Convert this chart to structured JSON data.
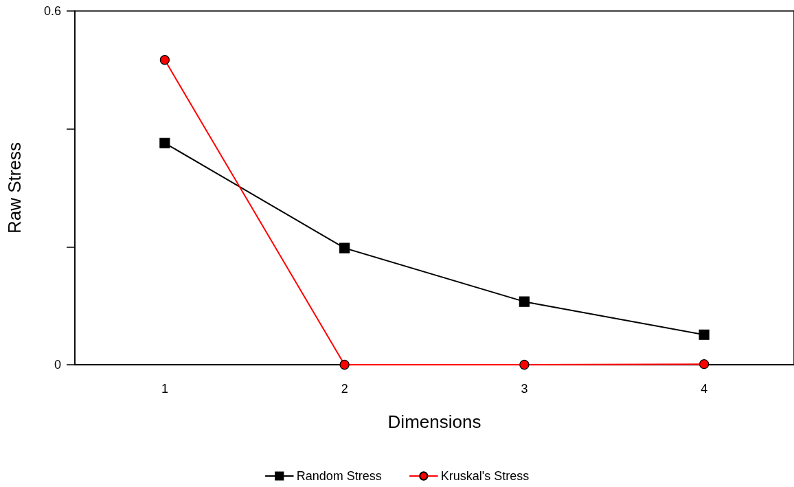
{
  "chart_data": {
    "type": "line",
    "xlabel": "Dimensions",
    "ylabel": "Raw Stress",
    "categories": [
      "1",
      "2",
      "3",
      "4"
    ],
    "series": [
      {
        "name": "Random Stress",
        "color": "#000000",
        "marker": "square",
        "values": [
          0.376,
          0.198,
          0.107,
          0.051
        ]
      },
      {
        "name": "Kruskal's Stress",
        "color": "#ff0000",
        "marker": "circle",
        "values": [
          0.517,
          0,
          0,
          0.001
        ]
      }
    ],
    "ylim": [
      0,
      0.6
    ],
    "yticks": [
      0,
      {
        "value": 0.2,
        "label": null
      },
      {
        "value": 0.4,
        "label": null
      },
      0.6
    ],
    "grid": false,
    "legend": "bottom",
    "line_style": "solid"
  }
}
